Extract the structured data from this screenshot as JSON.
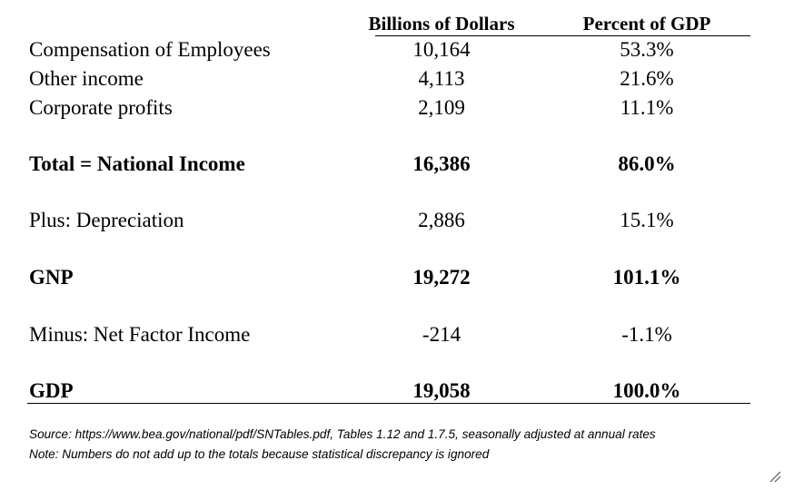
{
  "table": {
    "headers": [
      "Billions of Dollars",
      "Percent of GDP"
    ],
    "rows": [
      {
        "label": "Compensation of Employees",
        "billions": "10,164",
        "percent": "53.3%",
        "bold": false
      },
      {
        "label": "Other income",
        "billions": "4,113",
        "percent": "21.6%",
        "bold": false
      },
      {
        "label": "Corporate profits",
        "billions": "2,109",
        "percent": "11.1%",
        "bold": false
      },
      {
        "label": "Total = National Income",
        "billions": "16,386",
        "percent": "86.0%",
        "bold": true
      },
      {
        "label": "Plus: Depreciation",
        "billions": "2,886",
        "percent": "15.1%",
        "bold": false
      },
      {
        "label": "GNP",
        "billions": "19,272",
        "percent": "101.1%",
        "bold": true
      },
      {
        "label": "Minus: Net Factor Income",
        "billions": "-214",
        "percent": "-1.1%",
        "bold": false
      },
      {
        "label": "GDP",
        "billions": "19,058",
        "percent": "100.0%",
        "bold": true
      }
    ]
  },
  "notes": {
    "source": "Source: https://www.bea.gov/national/pdf/SNTables.pdf, Tables 1.12 and 1.7.5, seasonally adjusted at annual rates",
    "note": "Note: Numbers do not add up to the totals because statistical discrepancy is ignored"
  },
  "icons": {
    "resize_grip": "resize-grip-icon"
  }
}
